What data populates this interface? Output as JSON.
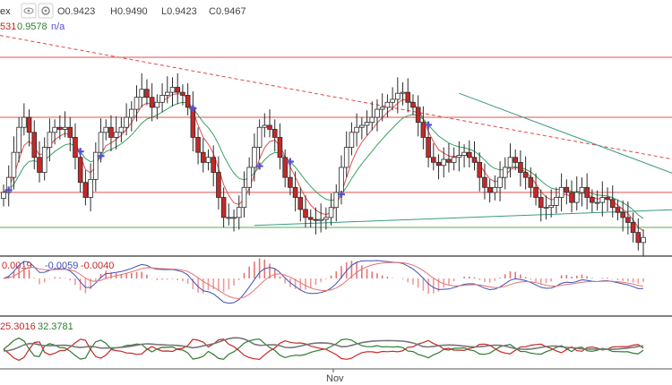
{
  "chart_data": [
    {
      "type": "candlestick",
      "name": "price",
      "header": {
        "symbol_fragment": "ex",
        "open": "O0.9423",
        "high": "H0.9490",
        "low": "L0.9423",
        "close": "C0.9467"
      },
      "indicator_values": {
        "left_value": "531",
        "value": "0.9578",
        "na": "n/a"
      },
      "horizontal_levels": [
        0.972,
        0.966,
        0.9585,
        0.955
      ],
      "ylim": [
        0.9525,
        0.9745
      ],
      "trend_lines": [
        {
          "style": "dashed",
          "color": "#e04848",
          "from": {
            "bar": -20,
            "price": 0.976
          },
          "to": {
            "bar": 150,
            "price": 0.96
          }
        },
        {
          "style": "solid",
          "color": "#3a9a84",
          "from": {
            "bar": 89,
            "price": 0.9684
          },
          "to": {
            "bar": 148,
            "price": 0.9571
          }
        },
        {
          "style": "solid",
          "color": "#3a9a84",
          "from": {
            "bar": 49,
            "price": 0.9552
          },
          "to": {
            "bar": 148,
            "price": 0.9571
          }
        }
      ],
      "closes": [
        0.9585,
        0.96,
        0.9625,
        0.965,
        0.966,
        0.9645,
        0.962,
        0.9605,
        0.963,
        0.9645,
        0.965,
        0.9648,
        0.965,
        0.964,
        0.962,
        0.9595,
        0.958,
        0.9598,
        0.9625,
        0.9645,
        0.965,
        0.964,
        0.9645,
        0.965,
        0.966,
        0.9668,
        0.968,
        0.9688,
        0.968,
        0.967,
        0.9675,
        0.9682,
        0.9685,
        0.969,
        0.9685,
        0.9682,
        0.967,
        0.964,
        0.9625,
        0.9615,
        0.962,
        0.9605,
        0.958,
        0.956,
        0.956,
        0.956,
        0.957,
        0.959,
        0.961,
        0.963,
        0.965,
        0.9652,
        0.9648,
        0.964,
        0.962,
        0.96,
        0.959,
        0.958,
        0.9568,
        0.956,
        0.9558,
        0.9557,
        0.9558,
        0.956,
        0.957,
        0.9585,
        0.961,
        0.963,
        0.9645,
        0.965,
        0.9652,
        0.9655,
        0.966,
        0.9668,
        0.967,
        0.9675,
        0.9678,
        0.9684,
        0.9685,
        0.9675,
        0.967,
        0.9655,
        0.964,
        0.962,
        0.9615,
        0.9612,
        0.9618,
        0.9615,
        0.962,
        0.9622,
        0.9625,
        0.962,
        0.9615,
        0.96,
        0.959,
        0.9585,
        0.959,
        0.96,
        0.961,
        0.962,
        0.9615,
        0.9605,
        0.96,
        0.959,
        0.958,
        0.957,
        0.957,
        0.9572,
        0.958,
        0.959,
        0.9585,
        0.9575,
        0.9585,
        0.959,
        0.958,
        0.9575,
        0.9575,
        0.958,
        0.9578,
        0.957,
        0.9565,
        0.956,
        0.9555,
        0.9545,
        0.9535,
        0.954
      ]
    },
    {
      "type": "line",
      "name": "macd",
      "values_text": [
        "0.0019",
        "-0.0059",
        "-0.0040"
      ]
    },
    {
      "type": "line",
      "name": "dmi",
      "values_text": [
        "25.3016",
        "32.3781"
      ]
    }
  ],
  "x_axis": {
    "labels": [
      "Nov"
    ]
  },
  "colors": {
    "bull": "#26a69a",
    "bear": "#c62828",
    "candle_dark": "#2b2b2b",
    "ma_fast": "#e05050",
    "ma_slow": "#3aa060",
    "level": "#e05050",
    "support": "#4caf50",
    "signal": "#5a4fcf"
  }
}
